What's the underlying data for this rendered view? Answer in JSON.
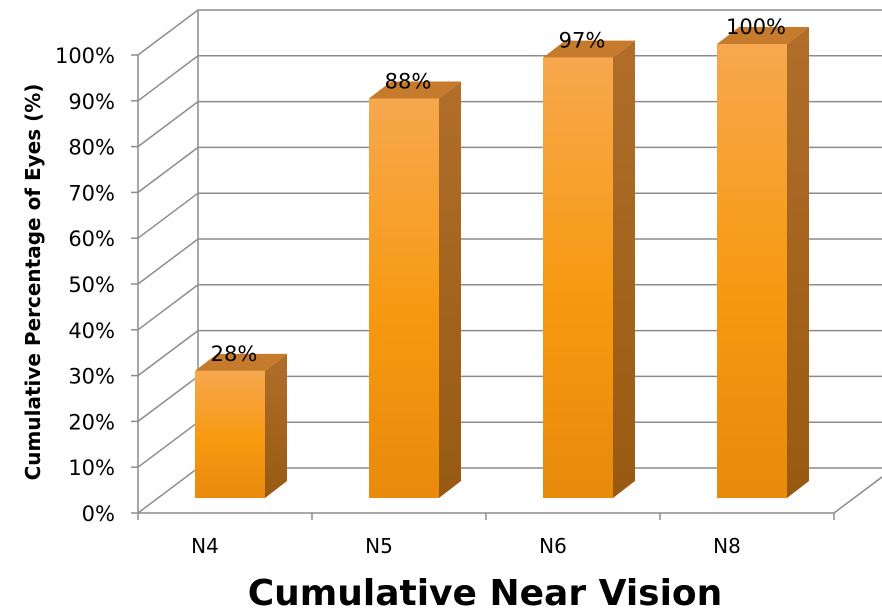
{
  "chart_data": {
    "type": "bar",
    "categories": [
      "N4",
      "N5",
      "N6",
      "N8"
    ],
    "values": [
      28,
      88,
      97,
      100
    ],
    "data_labels": [
      "28%",
      "88%",
      "97%",
      "100%"
    ],
    "xlabel": "Cumulative Near Vision",
    "ylabel": "Cumulative Percentage of Eyes (%)",
    "ylim": [
      0,
      100
    ],
    "ytick_values": [
      0,
      10,
      20,
      30,
      40,
      50,
      60,
      70,
      80,
      90,
      100
    ],
    "ytick_labels": [
      "0%",
      "10%",
      "20%",
      "30%",
      "40%",
      "50%",
      "60%",
      "70%",
      "80%",
      "90%",
      "100%"
    ],
    "grid": true,
    "style": "3d-column",
    "colors": {
      "bar_front_top": "#f7a84e",
      "bar_front_bottom": "#e88a0c",
      "bar_side": "#a8641a",
      "bar_top": "#c67a2c",
      "grid": "#8c8c8c"
    }
  }
}
